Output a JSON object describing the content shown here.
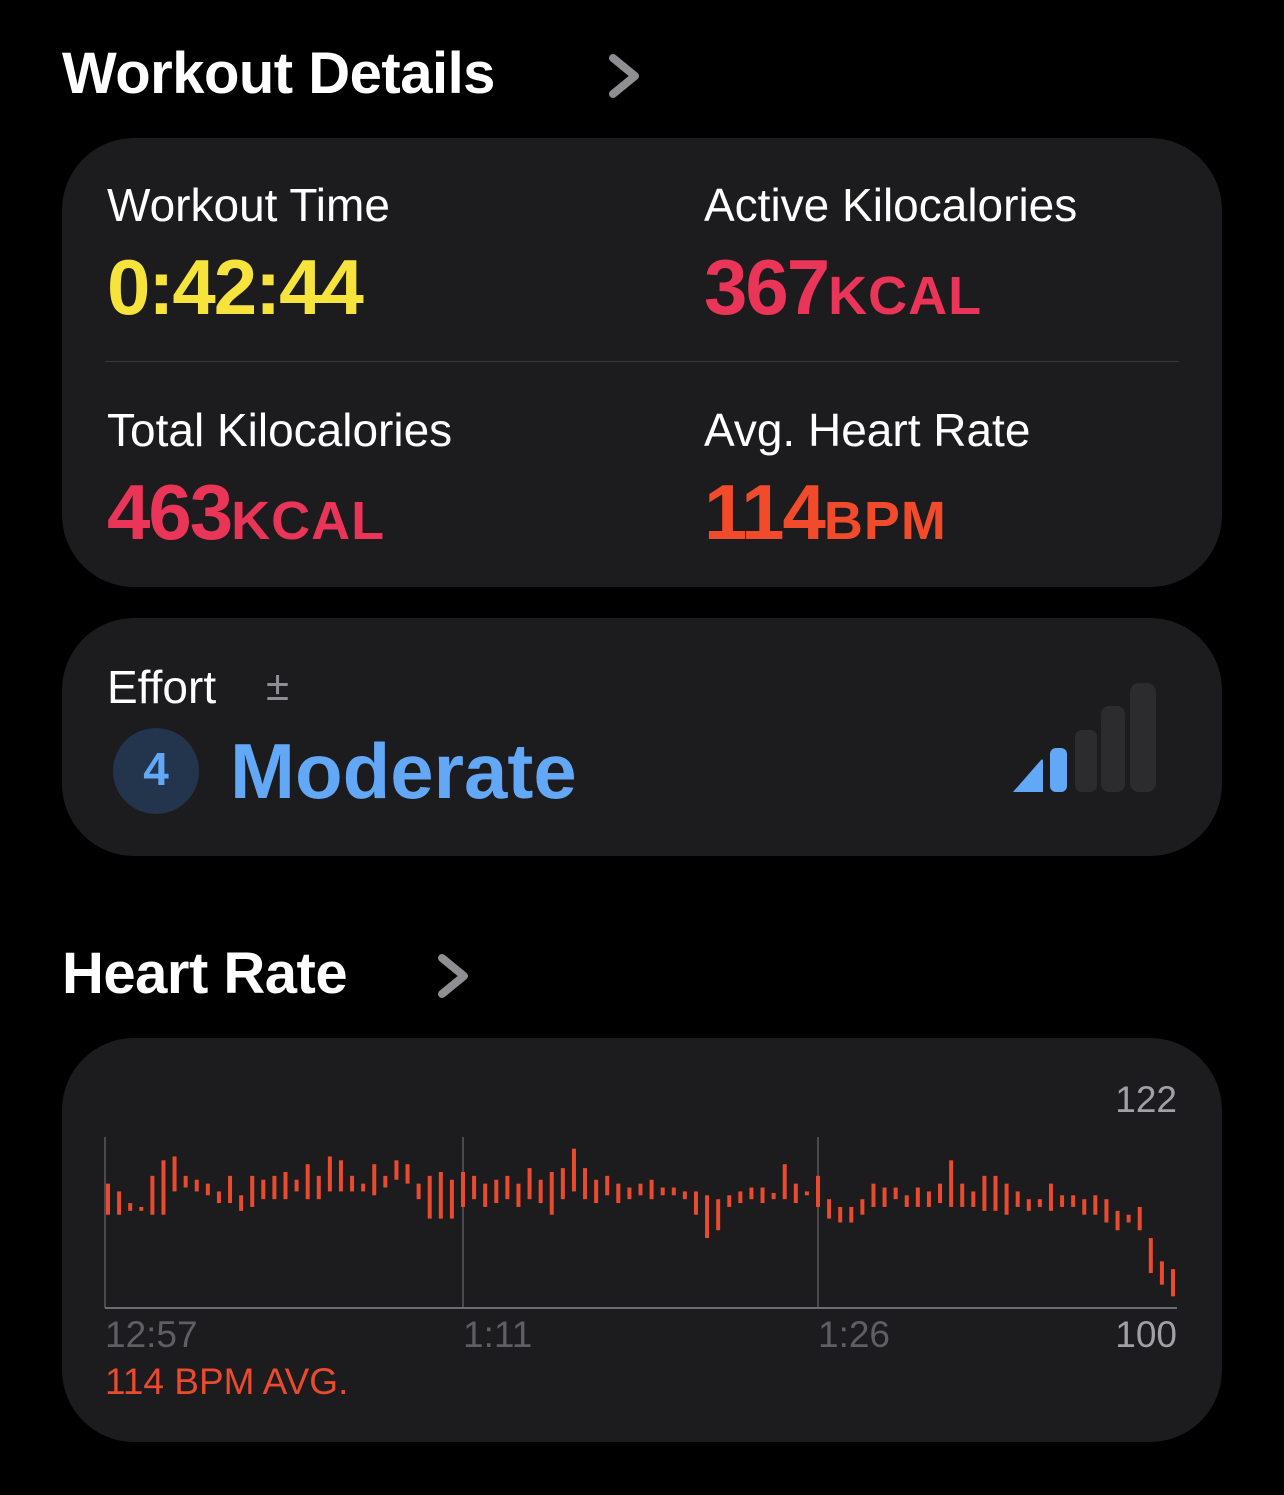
{
  "header": {
    "title": "Workout Details"
  },
  "stats": [
    {
      "label": "Workout Time",
      "value": "0:42:44",
      "color": "#f6e33c"
    },
    {
      "label": "Active Kilocalories",
      "value": 367,
      "unit": "KCAL",
      "color": "#ea3558"
    },
    {
      "label": "Total Kilocalories",
      "value": 463,
      "unit": "KCAL",
      "color": "#ea3558"
    },
    {
      "label": "Avg. Heart Rate",
      "value": 114,
      "unit": "BPM",
      "color": "#f24b2c"
    }
  ],
  "effort": {
    "label": "Effort",
    "symbol": "±",
    "level": "4",
    "rating": "Moderate"
  },
  "chart_data": {
    "type": "range-bar",
    "title": "Heart Rate",
    "annotation": "114 BPM AVG.",
    "color": "#ea4a2d",
    "categories": [
      "12:57",
      null,
      null,
      null,
      null,
      null,
      null,
      null,
      null,
      null,
      null,
      null,
      null,
      null,
      null,
      null,
      null,
      null,
      null,
      null,
      null,
      null,
      null,
      null,
      null,
      null,
      null,
      null,
      null,
      null,
      null,
      null,
      "1:11",
      null,
      null,
      null,
      null,
      null,
      null,
      null,
      null,
      null,
      null,
      null,
      null,
      null,
      null,
      null,
      null,
      null,
      null,
      null,
      null,
      null,
      null,
      null,
      null,
      null,
      null,
      null,
      null,
      null,
      null,
      null,
      "1:26",
      null,
      null,
      null,
      null,
      null,
      null,
      null,
      null,
      null,
      null,
      null,
      null,
      null,
      null,
      null,
      null,
      null,
      null,
      null,
      null,
      null,
      null,
      null,
      null,
      null,
      null,
      null,
      null,
      null,
      null,
      null,
      null
    ],
    "low": [
      112,
      112,
      112.5,
      112.5,
      112,
      112,
      115,
      115.5,
      115,
      114.5,
      113.5,
      113.5,
      112.5,
      113,
      114,
      114,
      114,
      115,
      114,
      114,
      115,
      115,
      115,
      115,
      114.5,
      115.5,
      116.5,
      116,
      114,
      111.5,
      111.5,
      111.5,
      113,
      114,
      113,
      113.5,
      114,
      113,
      114,
      113.5,
      112,
      114,
      115,
      114,
      113.5,
      114.5,
      113.5,
      114,
      114.5,
      114,
      114.5,
      114.5,
      114,
      112,
      109,
      110,
      113,
      113.5,
      114,
      113.5,
      114,
      114,
      113.5,
      114.5,
      113,
      111.5,
      111,
      111,
      112,
      113,
      113,
      114,
      113,
      113,
      113,
      113.5,
      113,
      113,
      113,
      112.5,
      112.5,
      112,
      113,
      112.5,
      113,
      112.5,
      113,
      113,
      112,
      112,
      111,
      110,
      111,
      110,
      104.5,
      103,
      101.5
    ],
    "high": [
      116,
      115,
      113.5,
      113,
      117,
      119,
      119.5,
      117,
      116.5,
      116,
      115,
      117,
      114.5,
      117,
      116.5,
      117,
      117.5,
      116.5,
      118.5,
      117,
      119.5,
      119,
      117,
      116,
      118.5,
      117,
      119,
      118.5,
      116,
      117,
      117.5,
      116.5,
      117.5,
      117,
      116,
      116.5,
      117,
      116,
      118,
      116.5,
      117.5,
      118,
      120.5,
      118,
      116.5,
      117,
      116,
      115.5,
      116,
      116.5,
      115.5,
      115.5,
      115,
      115,
      114.5,
      114,
      114.5,
      115,
      115.5,
      115.5,
      114.8,
      118.5,
      116,
      115,
      117,
      114,
      113,
      113,
      114,
      116,
      115.5,
      115.5,
      114.5,
      115.5,
      115,
      116,
      119,
      116,
      115,
      117,
      117,
      116,
      115,
      114,
      114,
      116,
      114.5,
      114.5,
      114,
      114.5,
      114,
      112.5,
      112,
      113,
      109,
      106,
      105
    ],
    "ylim": [
      100,
      122
    ],
    "yticks": [
      100,
      122
    ]
  }
}
